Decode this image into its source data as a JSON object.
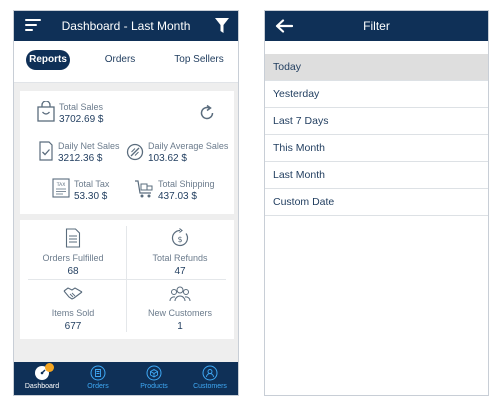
{
  "left": {
    "header": {
      "title": "Dashboard - Last Month",
      "menu_icon": "hamburger-menu-icon",
      "filter_icon": "funnel-filter-icon"
    },
    "tabs": [
      {
        "label": "Reports",
        "active": true
      },
      {
        "label": "Orders",
        "active": false
      },
      {
        "label": "Top Sellers",
        "active": false
      }
    ],
    "summary": {
      "total_sales": {
        "label": "Total Sales",
        "value": "3702.69 $"
      },
      "daily_net_sales": {
        "label": "Daily Net Sales",
        "value": "3212.36 $"
      },
      "daily_average_sales": {
        "label": "Daily Average Sales",
        "value": "103.62 $"
      },
      "total_tax": {
        "label": "Total Tax",
        "value": "53.30 $"
      },
      "total_shipping": {
        "label": "Total Shipping",
        "value": "437.03 $"
      },
      "refresh_icon": "refresh-icon"
    },
    "stats": {
      "orders_fulfilled": {
        "label": "Orders Fulfilled",
        "value": "68"
      },
      "total_refunds": {
        "label": "Total Refunds",
        "value": "47"
      },
      "items_sold": {
        "label": "Items Sold",
        "value": "677"
      },
      "new_customers": {
        "label": "New Customers",
        "value": "1"
      }
    },
    "bottom_nav": {
      "items": [
        {
          "label": "Dashboard",
          "icon": "dashboard-gauge-icon",
          "active": true,
          "badge": ""
        },
        {
          "label": "Orders",
          "icon": "orders-icon",
          "active": false
        },
        {
          "label": "Products",
          "icon": "products-icon",
          "active": false
        },
        {
          "label": "Customers",
          "icon": "customers-icon",
          "active": false
        }
      ]
    }
  },
  "right": {
    "header": {
      "title": "Filter",
      "back_icon": "back-arrow-icon"
    },
    "options": [
      {
        "label": "Today",
        "selected": true
      },
      {
        "label": "Yesterday",
        "selected": false
      },
      {
        "label": "Last 7 Days",
        "selected": false
      },
      {
        "label": "This Month",
        "selected": false
      },
      {
        "label": "Last Month",
        "selected": false
      },
      {
        "label": "Custom Date",
        "selected": false
      }
    ]
  },
  "colors": {
    "navy": "#0f3057",
    "accent_blue": "#3fa9f5",
    "badge_orange": "#f5a623",
    "selected_row": "#dedede"
  }
}
